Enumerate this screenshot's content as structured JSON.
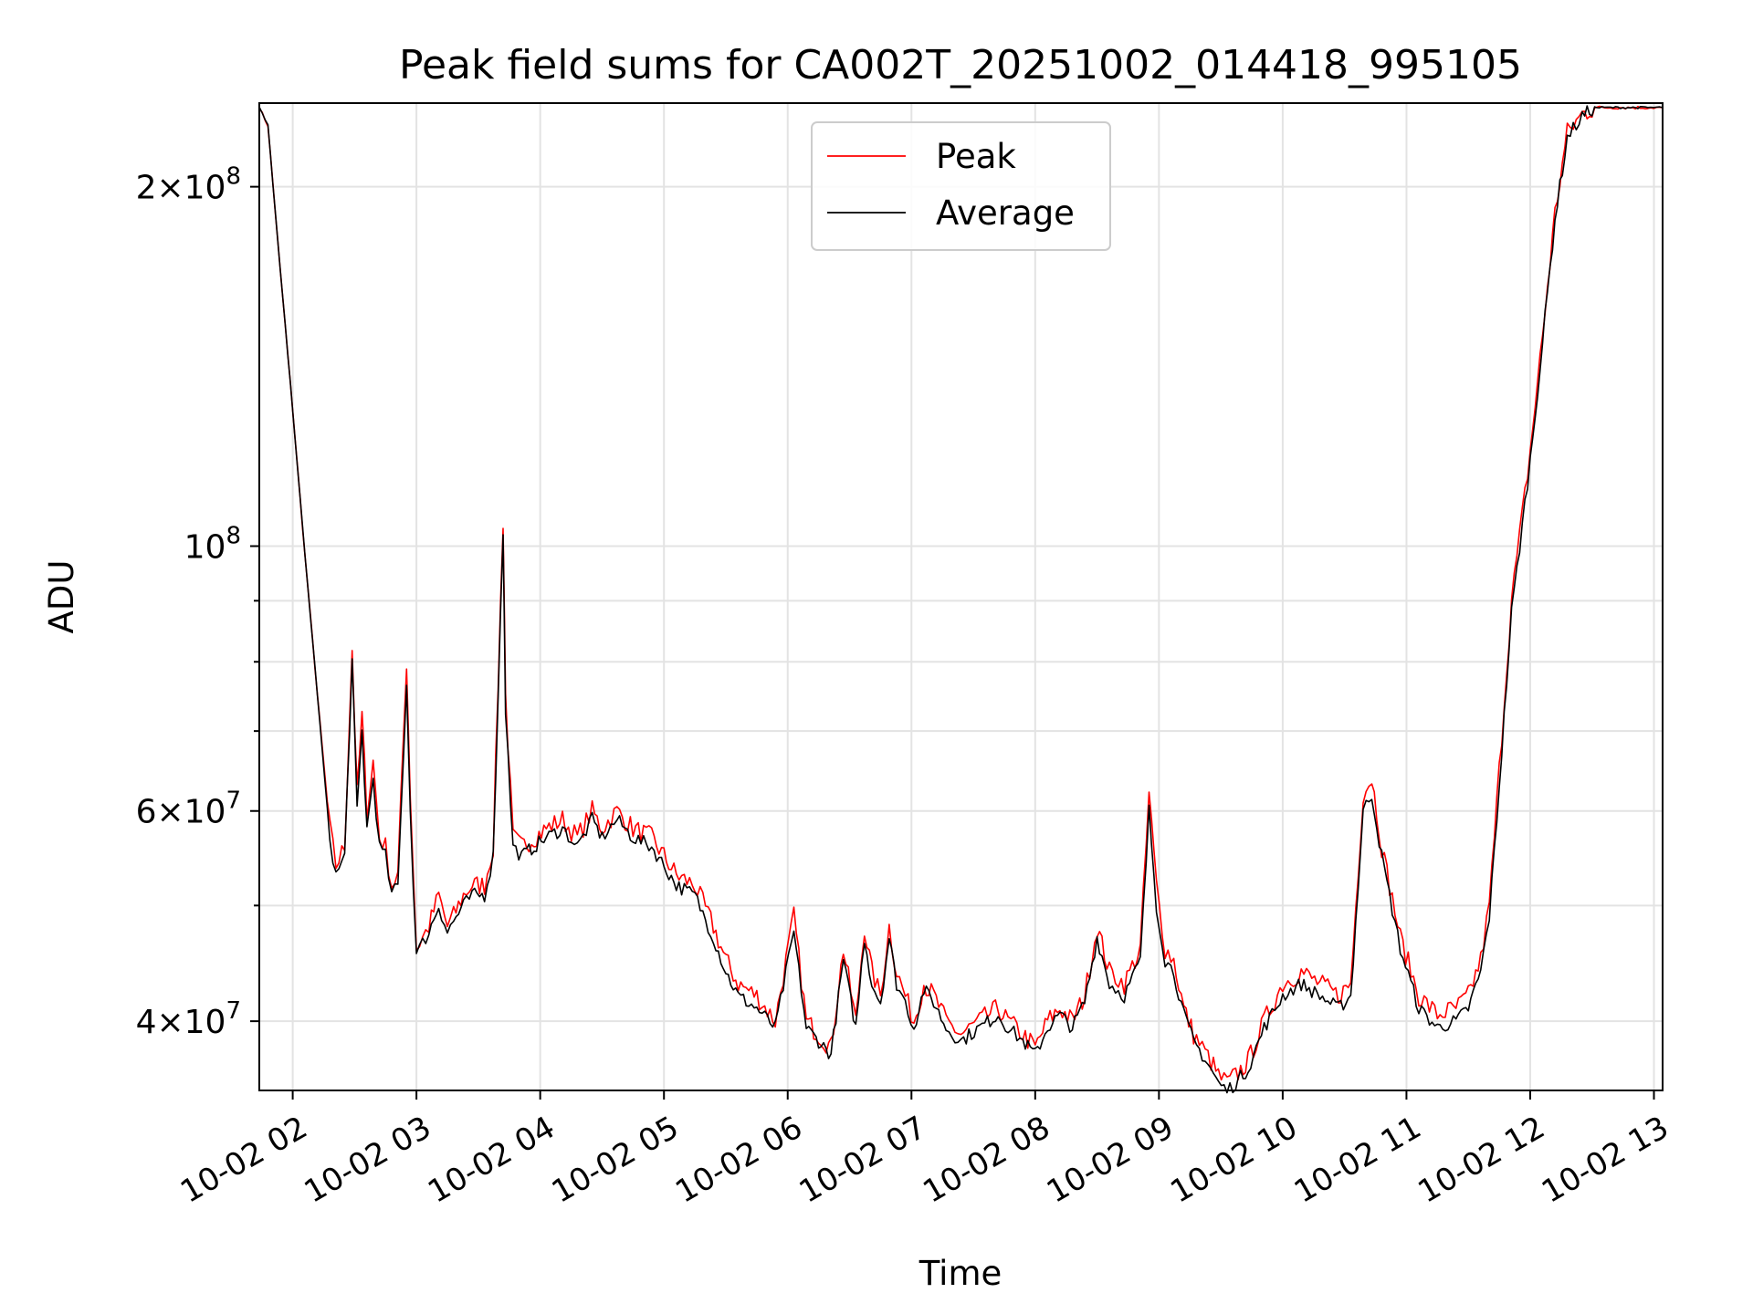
{
  "chart_data": {
    "type": "line",
    "title": "Peak field sums for CA002T_20251002_014418_995105",
    "xlabel": "Time",
    "ylabel": "ADU",
    "yscale": "log",
    "ylim": [
      35000000,
      235000000
    ],
    "xlim_hours": [
      1.73,
      13.07
    ],
    "x_tick_hours": [
      2,
      3,
      4,
      5,
      6,
      7,
      8,
      9,
      10,
      11,
      12,
      13
    ],
    "x_tick_labels": [
      "10-02 02",
      "10-02 03",
      "10-02 04",
      "10-02 05",
      "10-02 06",
      "10-02 07",
      "10-02 08",
      "10-02 09",
      "10-02 10",
      "10-02 11",
      "10-02 12",
      "10-02 13"
    ],
    "y_major_ticks": [
      {
        "value": 40000000,
        "mantissa": "4",
        "exponent": "7"
      },
      {
        "value": 60000000,
        "mantissa": "6",
        "exponent": "7"
      },
      {
        "value": 100000000,
        "mantissa": "",
        "exponent": "8"
      },
      {
        "value": 200000000,
        "mantissa": "2",
        "exponent": "8"
      }
    ],
    "y_minor_ticks": [
      50000000,
      70000000,
      80000000,
      90000000
    ],
    "grid": true,
    "legend": {
      "position": "top-center",
      "entries": [
        "Peak",
        "Average"
      ]
    },
    "series": [
      {
        "name": "Peak",
        "color": "#ff0000",
        "x_hours": [
          1.73,
          1.8,
          1.9,
          2.0,
          2.1,
          2.2,
          2.3,
          2.35,
          2.42,
          2.48,
          2.52,
          2.56,
          2.6,
          2.65,
          2.7,
          2.75,
          2.8,
          2.85,
          2.92,
          2.95,
          3.0,
          3.05,
          3.1,
          3.18,
          3.25,
          3.3,
          3.38,
          3.45,
          3.55,
          3.62,
          3.7,
          3.72,
          3.78,
          3.85,
          3.95,
          4.05,
          4.18,
          4.3,
          4.42,
          4.5,
          4.62,
          4.75,
          4.9,
          5.0,
          5.1,
          5.25,
          5.4,
          5.5,
          5.6,
          5.75,
          5.9,
          6.05,
          6.15,
          6.25,
          6.35,
          6.45,
          6.55,
          6.62,
          6.68,
          6.75,
          6.82,
          6.88,
          6.95,
          7.02,
          7.1,
          7.18,
          7.28,
          7.4,
          7.55,
          7.7,
          7.78,
          7.9,
          8.0,
          8.1,
          8.2,
          8.3,
          8.4,
          8.5,
          8.6,
          8.72,
          8.85,
          8.92,
          8.98,
          9.05,
          9.12,
          9.2,
          9.28,
          9.35,
          9.42,
          9.48,
          9.55,
          9.62,
          9.72,
          9.85,
          10.0,
          10.15,
          10.3,
          10.45,
          10.55,
          10.65,
          10.72,
          10.8,
          10.95,
          11.1,
          11.25,
          11.4,
          11.5,
          11.6,
          11.67,
          11.75,
          11.85,
          12.0,
          12.1,
          12.2,
          12.3,
          12.42,
          12.52,
          12.58,
          12.65,
          12.75,
          12.85,
          12.95,
          13.07
        ],
        "values": [
          233000000,
          225000000,
          170000000,
          130000000,
          98000000,
          75000000,
          58000000,
          54000000,
          56000000,
          82000000,
          62000000,
          72000000,
          60000000,
          66000000,
          57000000,
          56000000,
          52000000,
          53000000,
          80000000,
          62000000,
          46000000,
          47000000,
          48000000,
          51000000,
          48000000,
          49000000,
          51000000,
          52000000,
          52000000,
          56000000,
          105000000,
          75000000,
          57000000,
          56000000,
          57000000,
          58000000,
          59000000,
          57000000,
          60000000,
          58000000,
          60000000,
          58000000,
          57000000,
          55000000,
          53000000,
          52000000,
          48000000,
          45000000,
          43000000,
          42000000,
          40000000,
          49000000,
          40000000,
          39000000,
          38000000,
          46000000,
          40000000,
          48000000,
          44000000,
          42000000,
          48000000,
          44000000,
          42000000,
          40000000,
          43000000,
          42000000,
          40000000,
          39000000,
          40000000,
          41000000,
          40000000,
          39000000,
          38000000,
          40000000,
          41000000,
          40000000,
          42000000,
          48000000,
          44000000,
          43000000,
          46000000,
          62000000,
          52000000,
          46000000,
          45000000,
          41000000,
          39000000,
          38000000,
          37000000,
          36000000,
          35500000,
          36000000,
          37000000,
          40000000,
          43000000,
          44000000,
          43000000,
          42000000,
          43000000,
          62000000,
          64000000,
          56000000,
          47000000,
          42000000,
          40500000,
          41000000,
          42000000,
          45000000,
          50000000,
          65000000,
          90000000,
          120000000,
          150000000,
          190000000,
          222000000,
          230000000,
          233000000,
          233000000,
          233000000,
          233000000,
          233000000,
          233000000,
          233000000
        ]
      },
      {
        "name": "Average",
        "color": "#000000",
        "x_hours": [
          1.73,
          1.8,
          1.9,
          2.0,
          2.1,
          2.2,
          2.3,
          2.35,
          2.42,
          2.48,
          2.52,
          2.56,
          2.6,
          2.65,
          2.7,
          2.75,
          2.8,
          2.85,
          2.92,
          2.95,
          3.0,
          3.05,
          3.1,
          3.18,
          3.25,
          3.3,
          3.38,
          3.45,
          3.55,
          3.62,
          3.7,
          3.72,
          3.78,
          3.85,
          3.95,
          4.05,
          4.18,
          4.3,
          4.42,
          4.5,
          4.62,
          4.75,
          4.9,
          5.0,
          5.1,
          5.25,
          5.4,
          5.5,
          5.6,
          5.75,
          5.9,
          6.05,
          6.15,
          6.25,
          6.35,
          6.45,
          6.55,
          6.62,
          6.68,
          6.75,
          6.82,
          6.88,
          6.95,
          7.02,
          7.1,
          7.18,
          7.28,
          7.4,
          7.55,
          7.7,
          7.78,
          7.9,
          8.0,
          8.1,
          8.2,
          8.3,
          8.4,
          8.5,
          8.6,
          8.72,
          8.85,
          8.92,
          8.98,
          9.05,
          9.12,
          9.2,
          9.28,
          9.35,
          9.42,
          9.48,
          9.55,
          9.62,
          9.72,
          9.85,
          10.0,
          10.15,
          10.3,
          10.45,
          10.55,
          10.65,
          10.72,
          10.8,
          10.95,
          11.1,
          11.25,
          11.4,
          11.5,
          11.6,
          11.67,
          11.75,
          11.85,
          12.0,
          12.1,
          12.2,
          12.3,
          12.42,
          12.52,
          12.58,
          12.65,
          12.75,
          12.85,
          12.95,
          13.07
        ],
        "values": [
          233000000,
          225000000,
          170000000,
          130000000,
          98000000,
          75000000,
          57000000,
          53000000,
          55000000,
          80000000,
          60000000,
          70000000,
          58000000,
          64000000,
          56000000,
          55000000,
          51000000,
          52000000,
          77000000,
          60000000,
          45500000,
          46500000,
          47500000,
          50000000,
          47500000,
          48500000,
          50000000,
          51000000,
          51000000,
          55000000,
          103000000,
          73000000,
          56000000,
          55000000,
          56000000,
          57000000,
          58000000,
          56000000,
          59000000,
          57000000,
          59000000,
          57000000,
          56000000,
          54000000,
          52000000,
          51000000,
          47000000,
          44000000,
          42000000,
          41000000,
          39500000,
          47500000,
          39500000,
          38500000,
          37500000,
          45000000,
          39500000,
          47000000,
          43000000,
          41500000,
          47000000,
          43000000,
          41500000,
          39500000,
          42500000,
          41500000,
          39500000,
          38500000,
          39500000,
          40500000,
          39500000,
          38500000,
          37500000,
          39500000,
          40500000,
          39500000,
          41500000,
          47000000,
          43000000,
          42000000,
          45000000,
          60000000,
          50000000,
          45000000,
          44000000,
          40500000,
          38500000,
          37500000,
          36500000,
          35500000,
          35000000,
          35500000,
          36500000,
          39500000,
          42000000,
          43000000,
          42000000,
          41000000,
          42000000,
          60000000,
          62000000,
          55000000,
          46000000,
          41000000,
          39500000,
          40000000,
          41000000,
          44000000,
          49000000,
          63000000,
          88000000,
          118000000,
          148000000,
          188000000,
          220000000,
          229000000,
          233000000,
          233000000,
          233000000,
          233000000,
          233000000,
          233000000,
          233000000
        ]
      }
    ]
  }
}
